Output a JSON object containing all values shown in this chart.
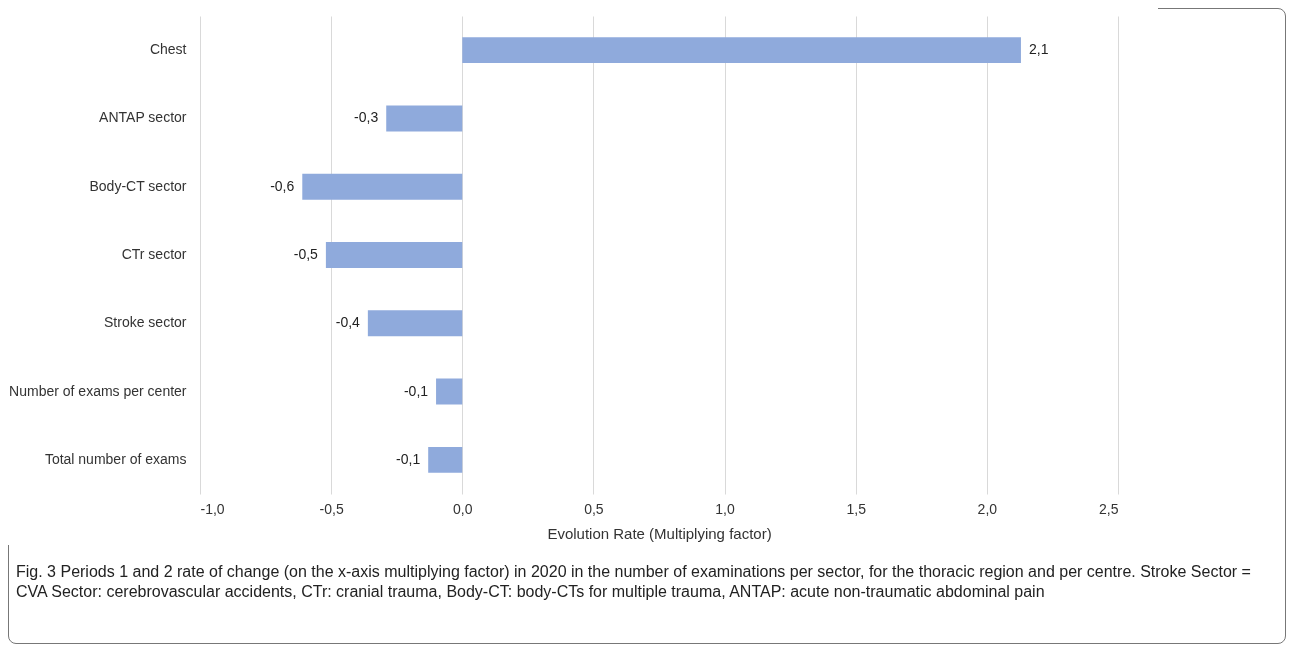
{
  "chart_data": {
    "type": "bar",
    "orientation": "horizontal",
    "categories": [
      "Chest",
      "ANTAP sector",
      "Body-CT sector",
      "CTr sector",
      "Stroke sector",
      "Number of exams per center",
      "Total number of exams"
    ],
    "values": [
      2.13,
      -0.29,
      -0.61,
      -0.52,
      -0.36,
      -0.1,
      -0.13
    ],
    "value_labels": [
      "2,1",
      "-0,3",
      "-0,6",
      "-0,5",
      "-0,4",
      "-0,1",
      "-0,1"
    ],
    "color": "#8faadc",
    "xlabel": "Evolution Rate (Multiplying factor)",
    "xlim": [
      -1,
      2.5
    ],
    "xticks": [
      {
        "value": -1,
        "label": "-1,0"
      },
      {
        "value": -0.5,
        "label": "-0,5"
      },
      {
        "value": 0,
        "label": "0,0"
      },
      {
        "value": 0.5,
        "label": "0,5"
      },
      {
        "value": 1,
        "label": "1,0"
      },
      {
        "value": 1.5,
        "label": "1,5"
      },
      {
        "value": 2,
        "label": "2,0"
      },
      {
        "value": 2.5,
        "label": "2,5"
      }
    ],
    "grid": "x",
    "annotations": [
      "Fig. 3 Periods 1 and 2 rate of change (on the x-axis multiplying factor) in 2020 in the number of examinations per sector, for the thoracic region and per centre. Stroke Sector = CVA Sector: cerebrovascular accidents, CTr: cranial trauma, Body-CT: body-CTs for multiple trauma, ANTAP: acute non-traumatic abdominal pain"
    ]
  }
}
